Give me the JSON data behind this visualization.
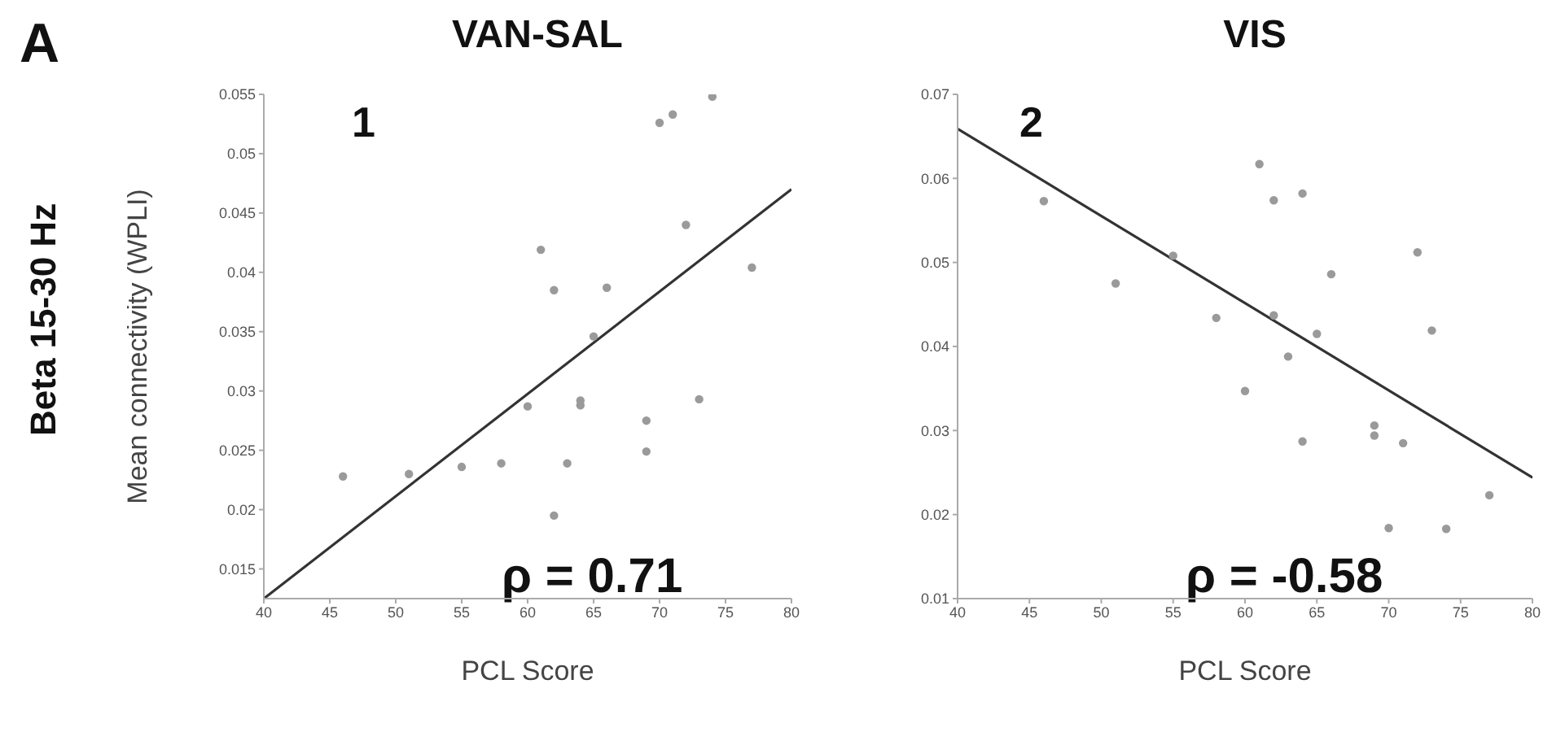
{
  "chart_data": [
    {
      "type": "scatter",
      "title": "VAN-SAL",
      "xlabel": "PCL Score",
      "ylabel": "Mean connectivity (WPLI)",
      "annotations": [
        "A",
        "Beta 15-30 Hz",
        "1",
        "ρ = 0.71"
      ],
      "xlim": [
        40,
        80
      ],
      "xticks": [
        40,
        45,
        50,
        55,
        60,
        65,
        70,
        75,
        80
      ],
      "ylim": [
        0.0125,
        0.055
      ],
      "yticks": [
        0.015,
        0.02,
        0.025,
        0.03,
        0.035,
        0.04,
        0.045,
        0.05,
        0.055
      ],
      "grid": false,
      "legend": false,
      "series": [
        {
          "marker": "circle",
          "color": "#9a9a9a",
          "x": [
            46,
            51,
            55,
            58,
            60,
            61,
            62,
            62,
            63,
            64,
            64,
            65,
            66,
            69,
            69,
            70,
            71,
            72,
            73,
            74,
            77
          ],
          "values": [
            0.0228,
            0.023,
            0.0236,
            0.0239,
            0.0287,
            0.0419,
            0.0385,
            0.0195,
            0.0239,
            0.0292,
            0.0288,
            0.0346,
            0.0387,
            0.0275,
            0.0249,
            0.0526,
            0.0533,
            0.044,
            0.0293,
            0.0548,
            0.0404
          ]
        },
        {
          "type": "line",
          "marker": "none",
          "color": "#333333",
          "x": [
            40,
            80
          ],
          "values": [
            0.0125,
            0.047
          ]
        }
      ]
    },
    {
      "type": "scatter",
      "title": "VIS",
      "xlabel": "PCL Score",
      "annotations": [
        "2",
        "ρ = -0.58"
      ],
      "xlim": [
        40,
        80
      ],
      "xticks": [
        40,
        45,
        50,
        55,
        60,
        65,
        70,
        75,
        80
      ],
      "ylim": [
        0.01,
        0.07
      ],
      "yticks": [
        0.01,
        0.02,
        0.03,
        0.04,
        0.05,
        0.06,
        0.07
      ],
      "grid": false,
      "legend": false,
      "series": [
        {
          "marker": "circle",
          "color": "#9a9a9a",
          "x": [
            46,
            51,
            55,
            58,
            60,
            61,
            62,
            62,
            63,
            64,
            64,
            65,
            66,
            69,
            69,
            70,
            71,
            72,
            73,
            74,
            77
          ],
          "values": [
            0.0573,
            0.0475,
            0.0508,
            0.0434,
            0.0347,
            0.0617,
            0.0574,
            0.0437,
            0.0388,
            0.0582,
            0.0287,
            0.0415,
            0.0486,
            0.0306,
            0.0294,
            0.0184,
            0.0285,
            0.0512,
            0.0419,
            0.0183,
            0.0223
          ]
        },
        {
          "type": "line",
          "marker": "none",
          "color": "#333333",
          "x": [
            40,
            80
          ],
          "values": [
            0.0659,
            0.0244
          ]
        }
      ]
    }
  ]
}
